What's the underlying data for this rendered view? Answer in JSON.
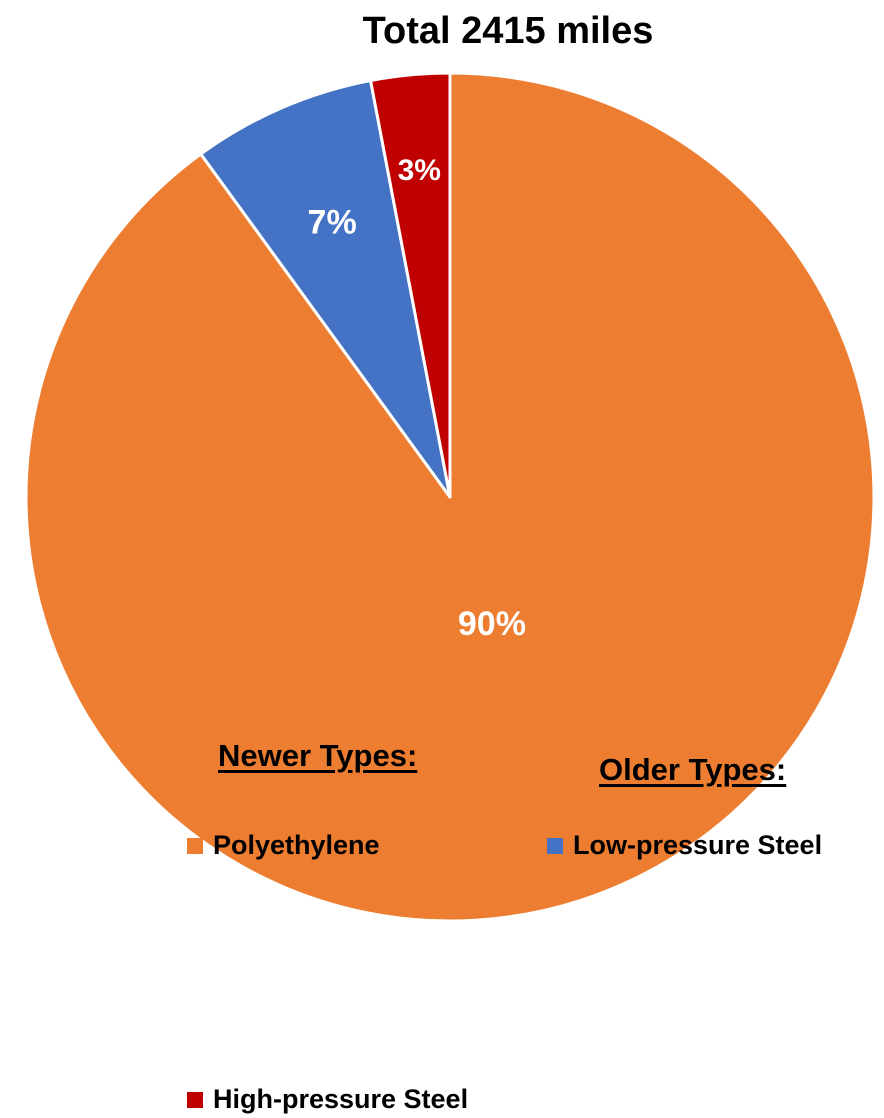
{
  "chart_data": {
    "type": "pie",
    "title": "Total 2415 miles",
    "start_angle": "12 o'clock",
    "direction": "clockwise",
    "slices": [
      {
        "name": "Polyethylene",
        "value": 90,
        "label": "90%",
        "color": "#ED7D31"
      },
      {
        "name": "Low-pressure Steel",
        "value": 7,
        "label": "7%",
        "color": "#4472C4"
      },
      {
        "name": "High-pressure Steel",
        "value": 3,
        "label": "3%",
        "color": "#C00000"
      }
    ],
    "legend": {
      "placement": "bottom",
      "groups": [
        {
          "heading": "Newer Types:",
          "entries": [
            "Polyethylene",
            "High-pressure Steel"
          ]
        },
        {
          "heading": "Older Types:",
          "entries": [
            "Low-pressure Steel"
          ]
        }
      ]
    }
  }
}
